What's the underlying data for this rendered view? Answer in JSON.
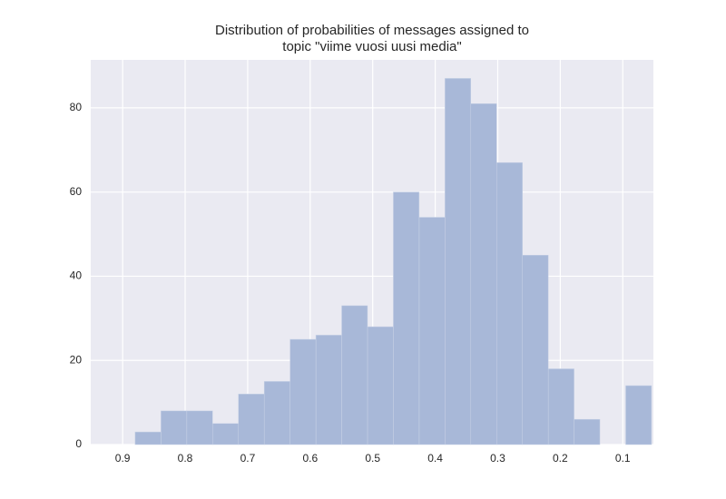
{
  "chart_data": {
    "type": "histogram",
    "title": [
      "Distribution of probabilities of messages assigned to",
      "topic \"viime vuosi uusi media\""
    ],
    "bins": [
      0.054,
      0.0953,
      0.1366,
      0.1779,
      0.2192,
      0.2605,
      0.3018,
      0.3431,
      0.3844,
      0.4257,
      0.467,
      0.5083,
      0.5496,
      0.5909,
      0.6322,
      0.6735,
      0.7148,
      0.7561,
      0.7974,
      0.8387,
      0.88
    ],
    "values": [
      14,
      0,
      6,
      18,
      45,
      67,
      81,
      87,
      54,
      60,
      28,
      33,
      26,
      25,
      15,
      12,
      5,
      8,
      8,
      3
    ],
    "color": "#a8b8d8",
    "xlim": [
      0.951,
      0.051
    ],
    "xticks": [
      0.9,
      0.8,
      0.7,
      0.6,
      0.5,
      0.4,
      0.3,
      0.2,
      0.1
    ],
    "ylim": [
      0,
      91.4
    ],
    "yticks": [
      0,
      20,
      40,
      60,
      80
    ],
    "grid": true,
    "background": "#eaeaf2"
  }
}
